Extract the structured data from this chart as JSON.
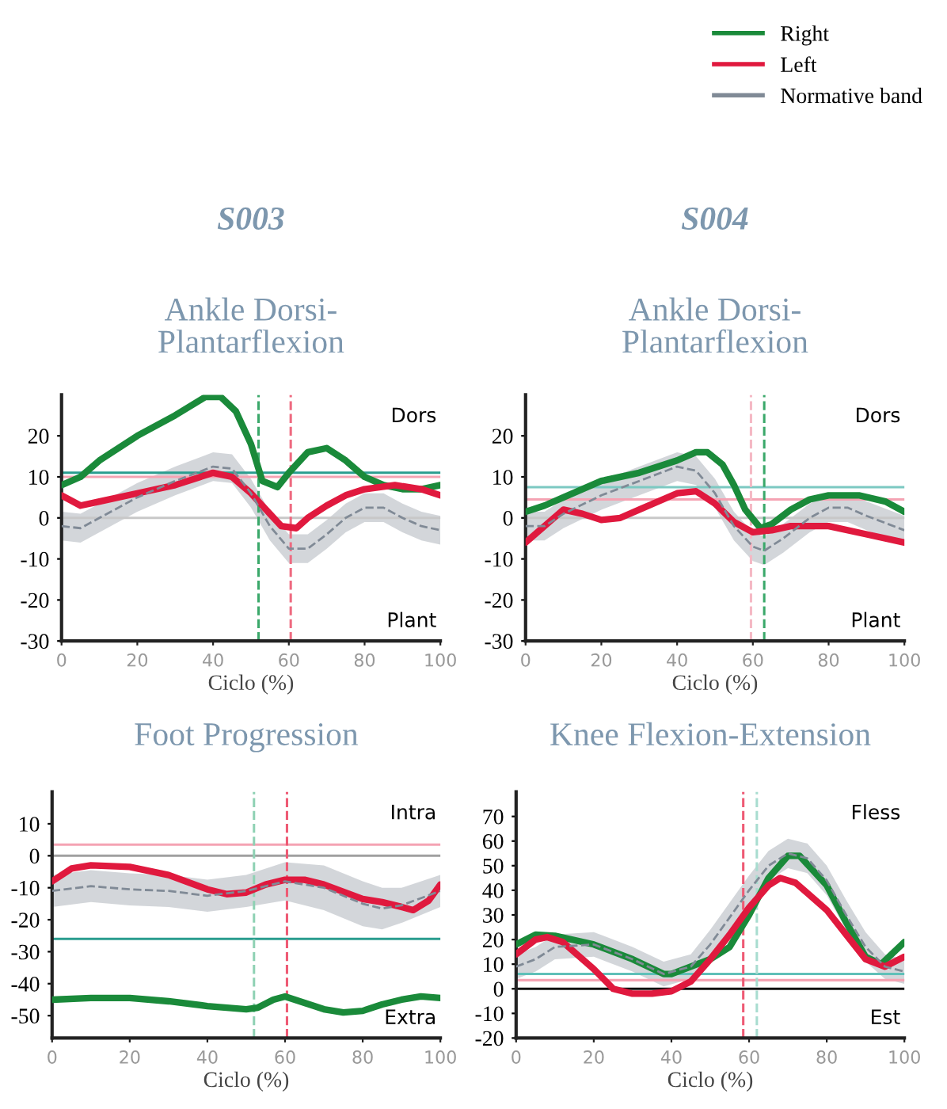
{
  "chart_data": [
    {
      "type": "line",
      "title": "S003",
      "subtitle": "Ankle Dorsi-\nPlantarflexion",
      "xlabel": "Ciclo (%)",
      "xlim": [
        0,
        100
      ],
      "xticks": [
        0,
        20,
        40,
        60,
        80,
        100
      ],
      "ylim": [
        -30,
        30
      ],
      "yticks": [
        -30,
        -20,
        -10,
        0,
        10,
        20
      ],
      "legend": "top right",
      "annotations": [
        "Dors",
        "Plant"
      ],
      "series": [
        {
          "name": "Right",
          "color": "#1a8a3a",
          "x": [
            0,
            5,
            10,
            20,
            30,
            38,
            42,
            46,
            50,
            53,
            57,
            60,
            65,
            70,
            75,
            80,
            85,
            90,
            95,
            100
          ],
          "values": [
            8,
            10,
            14,
            20,
            25,
            29.5,
            29.5,
            26,
            18,
            9,
            7.5,
            11,
            16,
            17,
            14,
            10,
            8,
            7,
            7,
            8
          ]
        },
        {
          "name": "Left",
          "color": "#e0193e",
          "x": [
            0,
            5,
            10,
            20,
            30,
            40,
            45,
            50,
            55,
            58,
            62,
            65,
            70,
            75,
            80,
            88,
            95,
            100
          ],
          "values": [
            5.5,
            3,
            4,
            6,
            8,
            11,
            10,
            6,
            1,
            -2,
            -2.5,
            0,
            3,
            5.5,
            7,
            8,
            7,
            5.5
          ]
        },
        {
          "name": "Normative band",
          "color": "#808a96",
          "line_style": "dashed",
          "x": [
            0,
            5,
            10,
            20,
            30,
            40,
            45,
            50,
            55,
            60,
            65,
            70,
            75,
            80,
            85,
            90,
            95,
            100
          ],
          "values": [
            -2,
            -2.5,
            0,
            5,
            9,
            12.5,
            12,
            6,
            -2,
            -7.5,
            -7.5,
            -4,
            0,
            2.5,
            2.5,
            0,
            -2,
            -3
          ],
          "lower": [
            -5.5,
            -6,
            -3.5,
            1.5,
            5.5,
            9,
            8.5,
            2.5,
            -5.5,
            -11,
            -11,
            -7.5,
            -3.5,
            -1,
            -1,
            -3.5,
            -5.5,
            -6.5
          ],
          "upper": [
            1.5,
            1,
            3.5,
            8.5,
            12.5,
            16,
            15.5,
            9.5,
            1.5,
            -4,
            -4,
            -0.5,
            3.5,
            6,
            6,
            3.5,
            1.5,
            0.5
          ]
        }
      ],
      "ref_lines": [
        {
          "axis": "y",
          "value": 11,
          "color": "#2a9d8f",
          "line_style": "solid"
        },
        {
          "axis": "y",
          "value": 10,
          "color": "#f5a3b3",
          "line_style": "solid"
        },
        {
          "axis": "y",
          "value": 0,
          "color": "#c8c8c8",
          "line_style": "solid"
        },
        {
          "axis": "x",
          "value": 52,
          "color": "#3aa86a",
          "line_style": "dashed"
        },
        {
          "axis": "x",
          "value": 60.5,
          "color": "#ee6a80",
          "line_style": "dashed"
        }
      ]
    },
    {
      "type": "line",
      "title": "S004",
      "subtitle": "Ankle Dorsi-\nPlantarflexion",
      "xlabel": "Ciclo (%)",
      "xlim": [
        0,
        100
      ],
      "xticks": [
        0,
        20,
        40,
        60,
        80,
        100
      ],
      "ylim": [
        -30,
        30
      ],
      "yticks": [
        -30,
        -20,
        -10,
        0,
        10,
        20
      ],
      "annotations": [
        "Dors",
        "Plant"
      ],
      "series": [
        {
          "color": "#1a8a3a",
          "x": [
            0,
            5,
            10,
            20,
            30,
            40,
            45,
            48,
            52,
            55,
            58,
            62,
            65,
            70,
            75,
            80,
            88,
            95,
            100
          ],
          "values": [
            1.5,
            3,
            5,
            9,
            11,
            14,
            16,
            16,
            13,
            8,
            2,
            -2.5,
            -1.5,
            2,
            4.5,
            5.5,
            5.5,
            4,
            1.5
          ]
        },
        {
          "color": "#e0193e",
          "x": [
            0,
            5,
            10,
            15,
            20,
            25,
            30,
            40,
            45,
            50,
            55,
            60,
            65,
            70,
            80,
            90,
            100
          ],
          "values": [
            -6,
            -2,
            2,
            1,
            -0.5,
            0,
            2,
            6,
            6.5,
            3.5,
            -1,
            -3.5,
            -3,
            -2,
            -2,
            -4,
            -6
          ]
        },
        {
          "color": "#808a96",
          "line_style": "dashed",
          "x": [
            0,
            5,
            10,
            20,
            30,
            40,
            45,
            50,
            55,
            60,
            63,
            68,
            75,
            80,
            85,
            90,
            100
          ],
          "values": [
            -2,
            -2,
            1,
            5.5,
            9,
            12.5,
            11.5,
            6,
            -2,
            -7,
            -8,
            -5,
            0,
            2.5,
            2.5,
            0.5,
            -3
          ],
          "lower": [
            -5.5,
            -5.5,
            -2.5,
            2,
            5.5,
            9,
            8,
            2.5,
            -5.5,
            -10.5,
            -11.5,
            -8.5,
            -3.5,
            -1,
            -1,
            -3,
            -6.5
          ],
          "upper": [
            1.5,
            1.5,
            4.5,
            9,
            12.5,
            16,
            15,
            9.5,
            1.5,
            -3.5,
            -4.5,
            -1.5,
            3.5,
            6,
            6,
            4,
            0.5
          ]
        }
      ],
      "ref_lines": [
        {
          "axis": "y",
          "value": 7.5,
          "color": "#7cc9c2",
          "line_style": "solid"
        },
        {
          "axis": "y",
          "value": 4.5,
          "color": "#f5a3b3",
          "line_style": "solid"
        },
        {
          "axis": "y",
          "value": 0,
          "color": "#c8c8c8",
          "line_style": "solid"
        },
        {
          "axis": "x",
          "value": 59.5,
          "color": "#f5b8c4",
          "line_style": "dashed"
        },
        {
          "axis": "x",
          "value": 63,
          "color": "#3aa86a",
          "line_style": "dashed"
        }
      ]
    },
    {
      "type": "line",
      "title": "Foot Progression",
      "xlabel": "Ciclo (%)",
      "xlim": [
        0,
        100
      ],
      "xticks": [
        0,
        20,
        40,
        60,
        80,
        100
      ],
      "ylim": [
        -57,
        20
      ],
      "yticks": [
        -50,
        -40,
        -30,
        -20,
        -10,
        0,
        10
      ],
      "annotations": [
        "Intra",
        "Extra"
      ],
      "series": [
        {
          "color": "#1a8a3a",
          "x": [
            0,
            10,
            20,
            30,
            40,
            50,
            53,
            57,
            60,
            65,
            70,
            75,
            80,
            85,
            90,
            95,
            100
          ],
          "values": [
            -45,
            -44.5,
            -44.5,
            -45.5,
            -47,
            -48,
            -47.5,
            -45,
            -44,
            -46,
            -48,
            -49,
            -48.5,
            -46.5,
            -45,
            -44,
            -44.5
          ]
        },
        {
          "color": "#e0193e",
          "x": [
            0,
            5,
            10,
            20,
            30,
            40,
            45,
            50,
            55,
            60,
            65,
            70,
            80,
            85,
            90,
            93,
            97,
            100
          ],
          "values": [
            -8,
            -4,
            -3,
            -3.5,
            -6,
            -10.5,
            -12,
            -11.5,
            -9,
            -7.5,
            -7.5,
            -9,
            -13.5,
            -14.5,
            -16,
            -17,
            -14,
            -9
          ]
        },
        {
          "color": "#808a96",
          "line_style": "dashed",
          "x": [
            0,
            10,
            20,
            30,
            40,
            50,
            60,
            70,
            80,
            85,
            90,
            100
          ],
          "values": [
            -11,
            -9.5,
            -10.5,
            -11,
            -12.5,
            -11,
            -8,
            -10,
            -15,
            -16.5,
            -15.5,
            -11
          ],
          "lower": [
            -16,
            -14.5,
            -15.5,
            -16,
            -17.5,
            -16,
            -14,
            -17,
            -22,
            -23,
            -21,
            -16
          ],
          "upper": [
            -6,
            -4.5,
            -5.5,
            -6,
            -7.5,
            -6,
            -2,
            -3,
            -8,
            -10,
            -10,
            -6
          ]
        }
      ],
      "ref_lines": [
        {
          "axis": "y",
          "value": 3.5,
          "color": "#f5a3b3",
          "line_style": "solid"
        },
        {
          "axis": "y",
          "value": 0,
          "color": "#a0a0a0",
          "line_style": "solid"
        },
        {
          "axis": "y",
          "value": -26,
          "color": "#2a9d8f",
          "line_style": "solid"
        },
        {
          "axis": "x",
          "value": 52,
          "color": "#8fd1b4",
          "line_style": "dashed"
        },
        {
          "axis": "x",
          "value": 60.5,
          "color": "#ee5a74",
          "line_style": "dashed"
        }
      ]
    },
    {
      "type": "line",
      "title": "Knee Flexion-Extension",
      "xlabel": "Ciclo (%)",
      "xlim": [
        0,
        100
      ],
      "xticks": [
        0,
        20,
        40,
        60,
        80,
        100
      ],
      "ylim": [
        -20,
        80
      ],
      "yticks": [
        -20,
        -10,
        0,
        10,
        20,
        30,
        40,
        50,
        60,
        70
      ],
      "annotations": [
        "Fless",
        "Est"
      ],
      "series": [
        {
          "color": "#1a8a3a",
          "x": [
            0,
            5,
            10,
            20,
            30,
            38,
            40,
            50,
            55,
            60,
            65,
            70,
            73,
            80,
            85,
            90,
            94,
            100
          ],
          "values": [
            18,
            22,
            21.5,
            18,
            12,
            6,
            6,
            12,
            17,
            30,
            45,
            54,
            54,
            42,
            27,
            13,
            10,
            19
          ]
        },
        {
          "color": "#e0193e",
          "x": [
            0,
            5,
            8,
            12,
            20,
            25,
            30,
            35,
            40,
            45,
            50,
            55,
            60,
            65,
            68,
            72,
            80,
            85,
            90,
            95,
            100
          ],
          "values": [
            14,
            20,
            21,
            19,
            8,
            0,
            -2,
            -2,
            -1,
            3,
            12,
            22,
            33,
            42,
            45,
            43,
            32,
            22,
            12,
            9,
            13
          ]
        },
        {
          "color": "#808a96",
          "line_style": "dashed",
          "x": [
            0,
            5,
            10,
            20,
            30,
            38,
            45,
            50,
            55,
            60,
            65,
            70,
            75,
            80,
            85,
            90,
            95,
            100
          ],
          "values": [
            9,
            12,
            17,
            18,
            12,
            6,
            9,
            18,
            29,
            40,
            50,
            55,
            53,
            44,
            30,
            17,
            9,
            7
          ],
          "lower": [
            4,
            7,
            12,
            13,
            7,
            1,
            4,
            12,
            23,
            34,
            44,
            49,
            47,
            38,
            24,
            11,
            4,
            2
          ],
          "upper": [
            14,
            17,
            22,
            23,
            17,
            11,
            14,
            24,
            35,
            46,
            56,
            61,
            59,
            50,
            36,
            23,
            14,
            12
          ]
        }
      ],
      "ref_lines": [
        {
          "axis": "y",
          "value": 6,
          "color": "#5fc0b8",
          "line_style": "solid"
        },
        {
          "axis": "y",
          "value": 3.5,
          "color": "#f5a3b3",
          "line_style": "solid"
        },
        {
          "axis": "y",
          "value": 0,
          "color": "#111111",
          "line_style": "solid"
        },
        {
          "axis": "x",
          "value": 58.5,
          "color": "#ee5a74",
          "line_style": "dashed"
        },
        {
          "axis": "x",
          "value": 62,
          "color": "#a8dccf",
          "line_style": "dashed"
        }
      ]
    }
  ]
}
